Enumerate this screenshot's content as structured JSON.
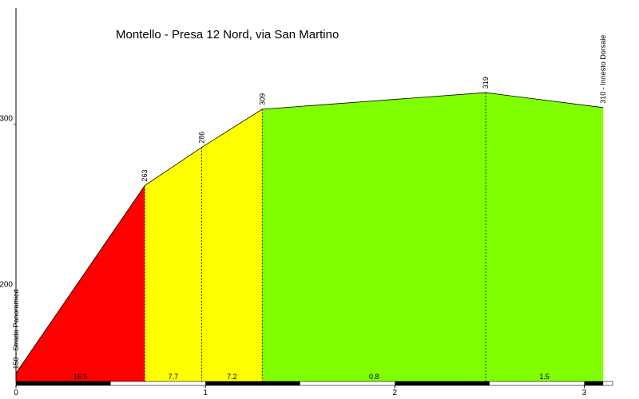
{
  "chart_data": {
    "type": "area",
    "title": "Montello - Presa 12 Nord, via San Martino",
    "xlabel": "",
    "ylabel": "",
    "xlim": [
      0,
      3.15
    ],
    "ylim": [
      145,
      370
    ],
    "x_ticks": [
      {
        "value": 0,
        "label": "0"
      },
      {
        "value": 1,
        "label": "1"
      },
      {
        "value": 2,
        "label": "2"
      },
      {
        "value": 3,
        "label": "3"
      }
    ],
    "y_ticks": [
      {
        "value": 200,
        "label": "200"
      },
      {
        "value": 300,
        "label": "300"
      }
    ],
    "profile": [
      {
        "x": 0,
        "y": 150,
        "label": "150 - Strada Panoramica"
      },
      {
        "x": 0.68,
        "y": 263,
        "label": "263"
      },
      {
        "x": 0.98,
        "y": 286,
        "label": "286"
      },
      {
        "x": 1.3,
        "y": 309,
        "label": "309"
      },
      {
        "x": 2.48,
        "y": 319,
        "label": "319"
      },
      {
        "x": 3.1,
        "y": 310,
        "label": "310 - Innesto Dorsale"
      }
    ],
    "segments": [
      {
        "from": 0,
        "to": 0.68,
        "gradient_label": "16.6",
        "color": "#ff0000"
      },
      {
        "from": 0.68,
        "to": 0.98,
        "gradient_label": "7.7",
        "color": "#ffff00"
      },
      {
        "from": 0.98,
        "to": 1.3,
        "gradient_label": "7.2",
        "color": "#ffff00"
      },
      {
        "from": 1.3,
        "to": 2.48,
        "gradient_label": "0.8",
        "color": "#80ff00"
      },
      {
        "from": 2.48,
        "to": 3.1,
        "gradient_label": "1.5",
        "color": "#80ff00"
      }
    ],
    "colors": {
      "axis": "#000000",
      "tick_y": "#cc0000",
      "outline": "#000000"
    }
  }
}
